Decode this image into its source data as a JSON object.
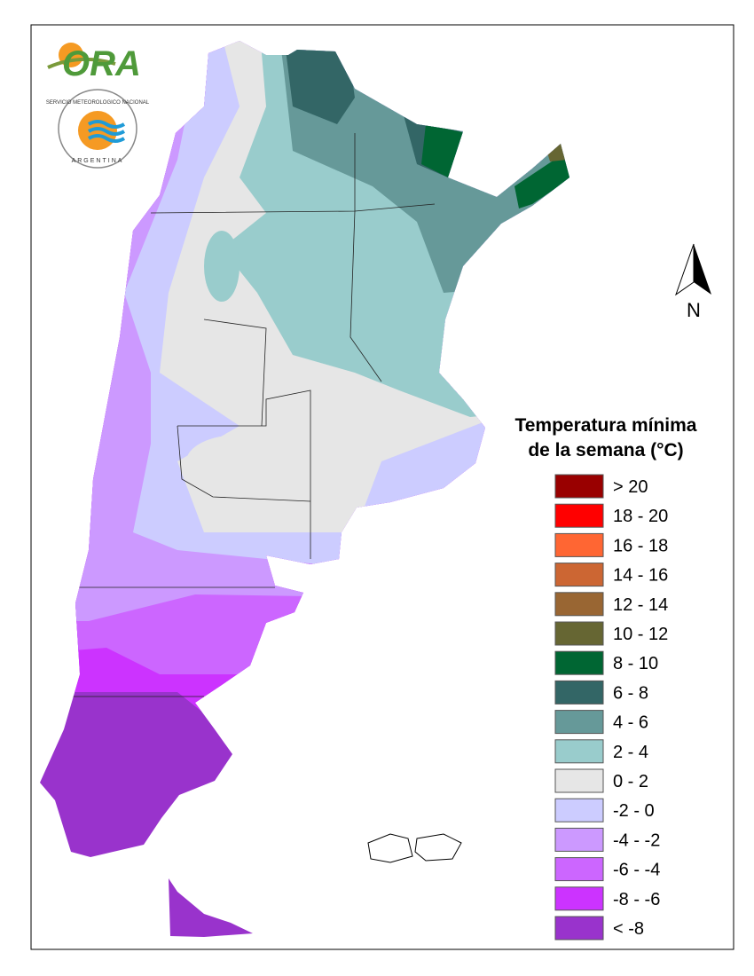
{
  "logo": {
    "name": "ORA",
    "agency": "SERVICIO METEOROLOGICO NACIONAL",
    "country": "ARGENTINA"
  },
  "north_label": "N",
  "legend": {
    "title": [
      "Temperatura mínima",
      "de la semana (°C)"
    ],
    "items": [
      {
        "label": "> 20",
        "color": "#990000"
      },
      {
        "label": "18 - 20",
        "color": "#ff0000"
      },
      {
        "label": "16 - 18",
        "color": "#ff6633"
      },
      {
        "label": "14 - 16",
        "color": "#cc6633"
      },
      {
        "label": "12 - 14",
        "color": "#996633"
      },
      {
        "label": "10 - 12",
        "color": "#666633"
      },
      {
        "label": "8 - 10",
        "color": "#006633"
      },
      {
        "label": "6 - 8",
        "color": "#336666"
      },
      {
        "label": "4 - 6",
        "color": "#669999"
      },
      {
        "label": "2 - 4",
        "color": "#99cccc"
      },
      {
        "label": "0 - 2",
        "color": "#e6e6e6"
      },
      {
        "label": "-2 - 0",
        "color": "#ccccff"
      },
      {
        "label": "-4 - -2",
        "color": "#cc99ff"
      },
      {
        "label": "-6 - -4",
        "color": "#cc66ff"
      },
      {
        "label": "-8 - -6",
        "color": "#cc33ff"
      },
      {
        "label": "< -8",
        "color": "#9933cc"
      }
    ]
  }
}
